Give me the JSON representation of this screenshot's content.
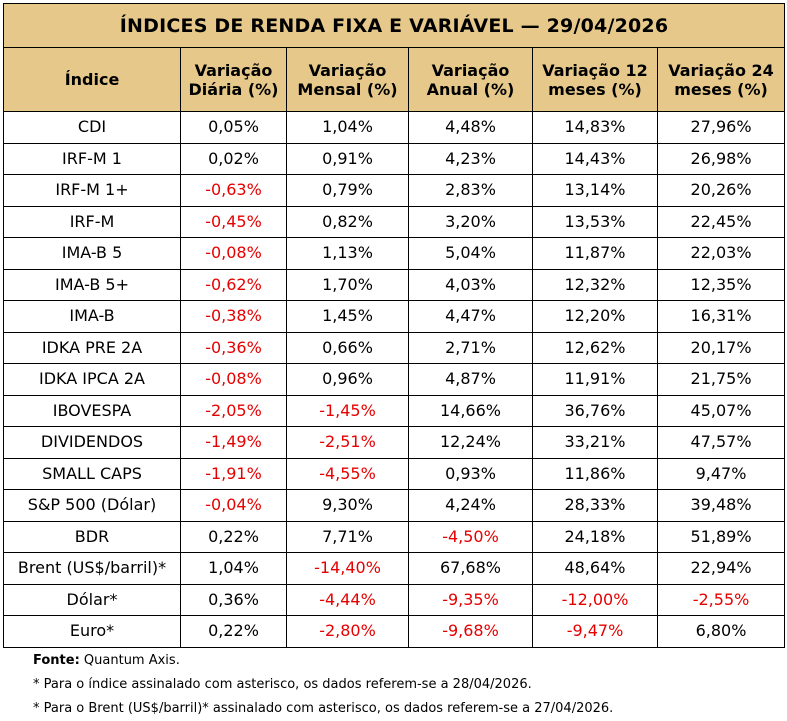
{
  "title": "ÍNDICES DE RENDA FIXA E VARIÁVEL — 29/04/2026",
  "columns": [
    {
      "label": "Índice"
    },
    {
      "label": "Variação Diária (%)"
    },
    {
      "label": "Variação Mensal (%)"
    },
    {
      "label": "Variação Anual (%)"
    },
    {
      "label": "Variação 12 meses (%)"
    },
    {
      "label": "Variação 24 meses (%)"
    }
  ],
  "rows": [
    {
      "name": "CDI",
      "values": [
        "0,05%",
        "1,04%",
        "4,48%",
        "14,83%",
        "27,96%"
      ]
    },
    {
      "name": "IRF-M 1",
      "values": [
        "0,02%",
        "0,91%",
        "4,23%",
        "14,43%",
        "26,98%"
      ]
    },
    {
      "name": "IRF-M 1+",
      "values": [
        "-0,63%",
        "0,79%",
        "2,83%",
        "13,14%",
        "20,26%"
      ]
    },
    {
      "name": "IRF-M",
      "values": [
        "-0,45%",
        "0,82%",
        "3,20%",
        "13,53%",
        "22,45%"
      ]
    },
    {
      "name": "IMA-B 5",
      "values": [
        "-0,08%",
        "1,13%",
        "5,04%",
        "11,87%",
        "22,03%"
      ]
    },
    {
      "name": "IMA-B 5+",
      "values": [
        "-0,62%",
        "1,70%",
        "4,03%",
        "12,32%",
        "12,35%"
      ]
    },
    {
      "name": "IMA-B",
      "values": [
        "-0,38%",
        "1,45%",
        "4,47%",
        "12,20%",
        "16,31%"
      ]
    },
    {
      "name": "IDKA PRE 2A",
      "values": [
        "-0,36%",
        "0,66%",
        "2,71%",
        "12,62%",
        "20,17%"
      ]
    },
    {
      "name": "IDKA IPCA 2A",
      "values": [
        "-0,08%",
        "0,96%",
        "4,87%",
        "11,91%",
        "21,75%"
      ]
    },
    {
      "name": "IBOVESPA",
      "values": [
        "-2,05%",
        "-1,45%",
        "14,66%",
        "36,76%",
        "45,07%"
      ]
    },
    {
      "name": "DIVIDENDOS",
      "values": [
        "-1,49%",
        "-2,51%",
        "12,24%",
        "33,21%",
        "47,57%"
      ]
    },
    {
      "name": "SMALL CAPS",
      "values": [
        "-1,91%",
        "-4,55%",
        "0,93%",
        "11,86%",
        "9,47%"
      ]
    },
    {
      "name": "S&P 500 (Dólar)",
      "values": [
        "-0,04%",
        "9,30%",
        "4,24%",
        "28,33%",
        "39,48%"
      ]
    },
    {
      "name": "BDR",
      "values": [
        "0,22%",
        "7,71%",
        "-4,50%",
        "24,18%",
        "51,89%"
      ]
    },
    {
      "name": "Brent (US$/barril)*",
      "values": [
        "1,04%",
        "-14,40%",
        "67,68%",
        "48,64%",
        "22,94%"
      ]
    },
    {
      "name": "Dólar*",
      "values": [
        "0,36%",
        "-4,44%",
        "-9,35%",
        "-12,00%",
        "-2,55%"
      ]
    },
    {
      "name": "Euro*",
      "values": [
        "0,22%",
        "-2,80%",
        "-9,68%",
        "-9,47%",
        "6,80%"
      ]
    }
  ],
  "colors": {
    "header_bg": "#e6c98a",
    "negative": "#e60000"
  },
  "footer": {
    "source_label": "Fonte:",
    "source_text": " Quantum Axis.",
    "note1": "* Para o índice assinalado com asterisco, os dados referem-se a 28/04/2026.",
    "note2": "* Para o Brent (US$/barril)* assinalado com asterisco, os dados referem-se a 27/04/2026."
  }
}
